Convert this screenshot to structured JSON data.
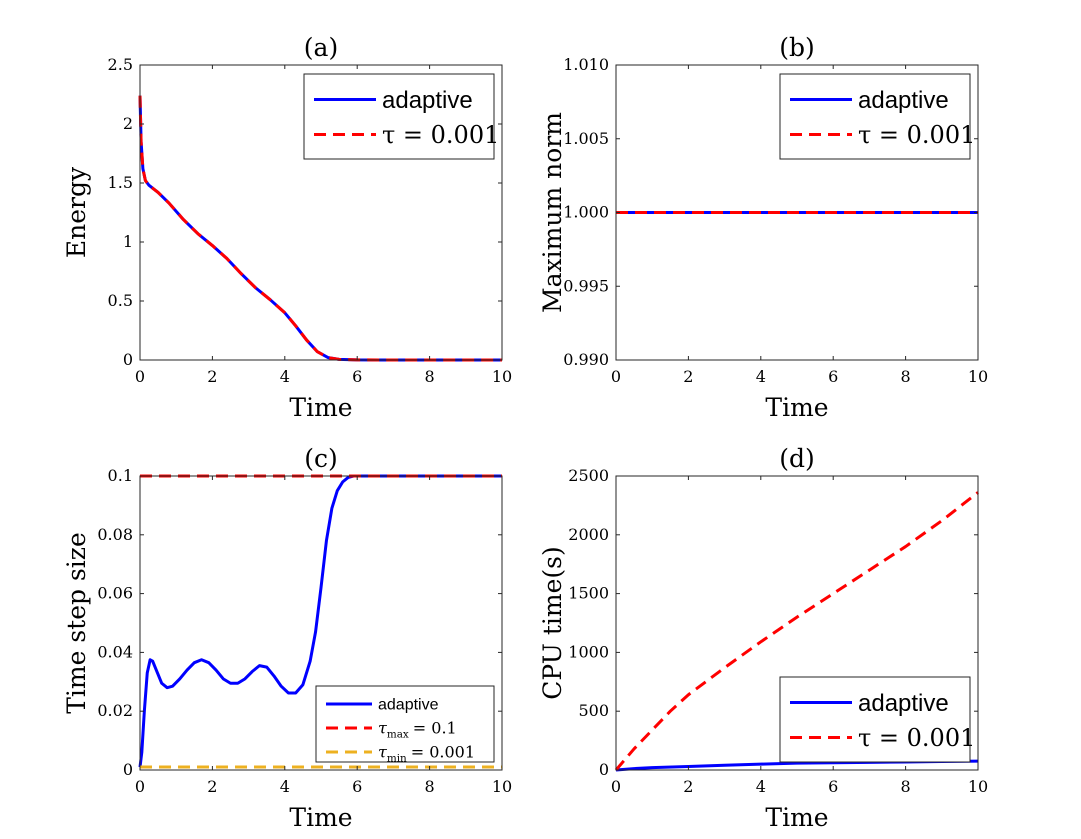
{
  "colors": {
    "adaptive": "#0000ff",
    "fixed": "#ff0000",
    "tau_min": "#edb120",
    "axis": "#262626",
    "frame": "#000000"
  },
  "chart_data": [
    {
      "id": "a",
      "type": "line",
      "title": "(a)",
      "xlabel": "Time",
      "ylabel": "Energy",
      "xlim": [
        0,
        10
      ],
      "ylim": [
        0,
        2.5
      ],
      "xticks": [
        0,
        2,
        4,
        6,
        8,
        10
      ],
      "xtick_labels": [
        "0",
        "2",
        "4",
        "6",
        "8",
        "10"
      ],
      "yticks": [
        0,
        0.5,
        1,
        1.5,
        2,
        2.5
      ],
      "ytick_labels": [
        "0",
        "0.5",
        "1",
        "1.5",
        "2",
        "2.5"
      ],
      "legend": {
        "position": "top-right",
        "size": "large"
      },
      "series": [
        {
          "name": "adaptive",
          "style": "solid",
          "color": "#0000ff",
          "x": [
            0,
            0.03,
            0.08,
            0.15,
            0.25,
            0.5,
            0.8,
            1.2,
            1.6,
            2.0,
            2.4,
            2.8,
            3.2,
            3.6,
            4.0,
            4.3,
            4.6,
            4.9,
            5.2,
            5.5,
            6.0,
            7.0,
            8.0,
            9.0,
            10.0
          ],
          "y": [
            2.24,
            1.85,
            1.62,
            1.52,
            1.48,
            1.42,
            1.33,
            1.19,
            1.07,
            0.97,
            0.86,
            0.73,
            0.61,
            0.51,
            0.4,
            0.29,
            0.17,
            0.07,
            0.02,
            0.005,
            0.001,
            0.0,
            0.0,
            0.0,
            0.0
          ]
        },
        {
          "name": "τ = 0.001",
          "style": "dashed",
          "color": "#ff0000",
          "x": [
            0,
            0.03,
            0.08,
            0.15,
            0.25,
            0.5,
            0.8,
            1.2,
            1.6,
            2.0,
            2.4,
            2.8,
            3.2,
            3.6,
            4.0,
            4.3,
            4.6,
            4.9,
            5.2,
            5.5,
            6.0,
            7.0,
            8.0,
            9.0,
            10.0
          ],
          "y": [
            2.24,
            1.85,
            1.62,
            1.52,
            1.48,
            1.42,
            1.33,
            1.19,
            1.07,
            0.97,
            0.86,
            0.73,
            0.61,
            0.51,
            0.4,
            0.29,
            0.17,
            0.07,
            0.02,
            0.005,
            0.001,
            0.0,
            0.0,
            0.0,
            0.0
          ]
        }
      ]
    },
    {
      "id": "b",
      "type": "line",
      "title": "(b)",
      "xlabel": "Time",
      "ylabel": "Maximum norm",
      "xlim": [
        0,
        10
      ],
      "ylim": [
        0.99,
        1.01
      ],
      "xticks": [
        0,
        2,
        4,
        6,
        8,
        10
      ],
      "xtick_labels": [
        "0",
        "2",
        "4",
        "6",
        "8",
        "10"
      ],
      "yticks": [
        0.99,
        0.995,
        1.0,
        1.005,
        1.01
      ],
      "ytick_labels": [
        "0.990",
        "0.995",
        "1.000",
        "1.005",
        "1.010"
      ],
      "legend": {
        "position": "top-right",
        "size": "large"
      },
      "series": [
        {
          "name": "adaptive",
          "style": "solid",
          "color": "#0000ff",
          "x": [
            0,
            10
          ],
          "y": [
            1.0,
            1.0
          ]
        },
        {
          "name": "τ = 0.001",
          "style": "dashed",
          "color": "#ff0000",
          "x": [
            0,
            10
          ],
          "y": [
            1.0,
            1.0
          ]
        }
      ]
    },
    {
      "id": "c",
      "type": "line",
      "title": "(c)",
      "xlabel": "Time",
      "ylabel": "Time step size",
      "xlim": [
        0,
        10
      ],
      "ylim": [
        0,
        0.1
      ],
      "xticks": [
        0,
        2,
        4,
        6,
        8,
        10
      ],
      "xtick_labels": [
        "0",
        "2",
        "4",
        "6",
        "8",
        "10"
      ],
      "yticks": [
        0,
        0.02,
        0.04,
        0.06,
        0.08,
        0.1
      ],
      "ytick_labels": [
        "0",
        "0.02",
        "0.04",
        "0.06",
        "0.08",
        "0.1"
      ],
      "legend": {
        "position": "bottom-right",
        "size": "small"
      },
      "series": [
        {
          "name": "adaptive",
          "style": "solid",
          "color": "#0000ff",
          "x": [
            0,
            0.05,
            0.12,
            0.2,
            0.28,
            0.35,
            0.45,
            0.6,
            0.75,
            0.9,
            1.1,
            1.3,
            1.5,
            1.7,
            1.9,
            2.1,
            2.3,
            2.5,
            2.7,
            2.9,
            3.1,
            3.3,
            3.5,
            3.7,
            3.9,
            4.1,
            4.3,
            4.5,
            4.7,
            4.85,
            5.0,
            5.15,
            5.3,
            5.45,
            5.6,
            5.75,
            5.9,
            6.0,
            7.0,
            8.0,
            9.0,
            10.0
          ],
          "y": [
            0.001,
            0.006,
            0.02,
            0.033,
            0.0375,
            0.037,
            0.034,
            0.0295,
            0.028,
            0.0285,
            0.031,
            0.034,
            0.0365,
            0.0375,
            0.0365,
            0.034,
            0.031,
            0.0295,
            0.0295,
            0.031,
            0.0335,
            0.0355,
            0.035,
            0.032,
            0.0285,
            0.0262,
            0.0262,
            0.029,
            0.037,
            0.047,
            0.062,
            0.078,
            0.089,
            0.095,
            0.098,
            0.0995,
            0.1,
            0.1,
            0.1,
            0.1,
            0.1,
            0.1
          ]
        },
        {
          "name": "τmax = 0.1",
          "sub": "max",
          "value_label": "= 0.1",
          "style": "dashed",
          "color": "#ff0000",
          "x": [
            0,
            10
          ],
          "y": [
            0.1,
            0.1
          ]
        },
        {
          "name": "τmin = 0.001",
          "sub": "min",
          "value_label": "= 0.001",
          "style": "dashed",
          "color": "#edb120",
          "x": [
            0,
            10
          ],
          "y": [
            0.001,
            0.001
          ]
        }
      ]
    },
    {
      "id": "d",
      "type": "line",
      "title": "(d)",
      "xlabel": "Time",
      "ylabel": "CPU time(s)",
      "xlim": [
        0,
        10
      ],
      "ylim": [
        0,
        2500
      ],
      "xticks": [
        0,
        2,
        4,
        6,
        8,
        10
      ],
      "xtick_labels": [
        "0",
        "2",
        "4",
        "6",
        "8",
        "10"
      ],
      "yticks": [
        0,
        500,
        1000,
        1500,
        2000,
        2500
      ],
      "ytick_labels": [
        "0",
        "500",
        "1000",
        "1500",
        "2000",
        "2500"
      ],
      "legend": {
        "position": "bottom-right",
        "size": "large"
      },
      "series": [
        {
          "name": "adaptive",
          "style": "solid",
          "color": "#0000ff",
          "x": [
            0,
            0.5,
            1,
            2,
            3,
            4,
            5,
            6,
            7,
            8,
            9,
            10
          ],
          "y": [
            0,
            12,
            20,
            30,
            40,
            50,
            58,
            62,
            65,
            68,
            72,
            75
          ]
        },
        {
          "name": "τ = 0.001",
          "style": "dashed",
          "color": "#ff0000",
          "x": [
            0,
            0.5,
            1,
            1.5,
            2,
            3,
            4,
            5,
            6,
            7,
            8,
            9,
            10
          ],
          "y": [
            0,
            180,
            340,
            500,
            640,
            870,
            1090,
            1300,
            1500,
            1700,
            1900,
            2120,
            2360
          ]
        }
      ]
    }
  ]
}
